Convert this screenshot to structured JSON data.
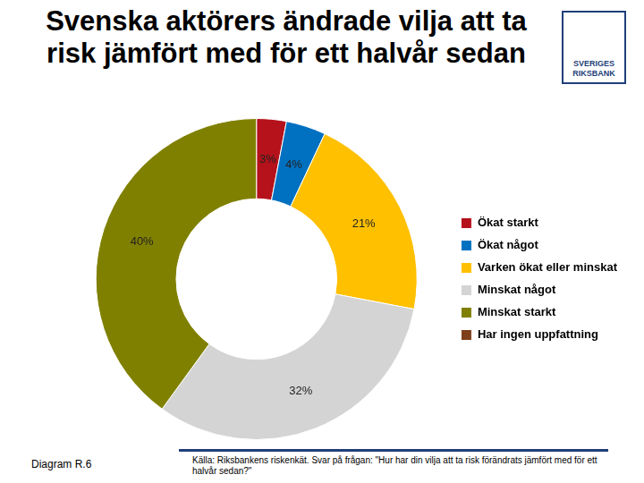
{
  "chart_data": {
    "type": "doughnut",
    "title": "Svenska aktörers ändrade vilja att ta risk jämfört med för ett halvår sedan",
    "categories": [
      "Ökat starkt",
      "Ökat något",
      "Varken ökat eller minskat",
      "Minskat något",
      "Minskat starkt",
      "Har ingen uppfattning"
    ],
    "values": [
      3,
      4,
      21,
      32,
      40,
      0
    ],
    "value_labels": [
      "3%",
      "4%",
      "21%",
      "32%",
      "40%",
      null
    ],
    "colors": [
      "#b5121b",
      "#0070c0",
      "#ffc000",
      "#d4d4d4",
      "#808000",
      "#7f3f1a"
    ],
    "data_labels": true,
    "legend": "right"
  },
  "logo": {
    "text": "SVERIGES RIKSBANK"
  },
  "footer": {
    "diagram_label": "Diagram R.6",
    "source": "Källa: Riksbankens riskenkät. Svar på frågan: \"Hur har din vilja att ta risk förändrats jämfört med för ett halvår sedan?\""
  }
}
